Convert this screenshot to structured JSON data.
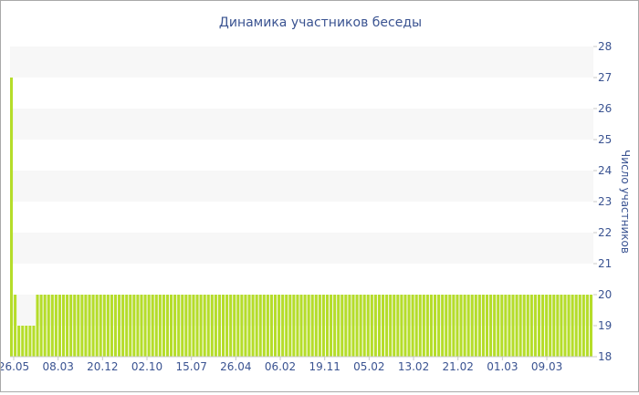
{
  "chart_data": {
    "type": "bar",
    "title": "Динамика участников беседы",
    "xlabel": "",
    "ylabel": "Число участников",
    "ylim": [
      18,
      28
    ],
    "y_ticks": [
      18,
      19,
      20,
      21,
      22,
      23,
      24,
      25,
      26,
      27,
      28
    ],
    "y_axis_side": "right",
    "grid": "horizontal alternating bands",
    "x_tick_labels": [
      "26.05",
      "08.03",
      "20.12",
      "02.10",
      "15.07",
      "26.04",
      "06.02",
      "19.11",
      "05.02",
      "13.02",
      "21.02",
      "01.03",
      "09.03"
    ],
    "series": [
      {
        "color": "#b5dd2a",
        "values": [
          27,
          20,
          19,
          19,
          19,
          19,
          19,
          20,
          20,
          20,
          20,
          20,
          20,
          20,
          20,
          20,
          20,
          20,
          20,
          20,
          20,
          20,
          20,
          20,
          20,
          20,
          20,
          20,
          20,
          20,
          20,
          20,
          20,
          20,
          20,
          20,
          20,
          20,
          20,
          20,
          20,
          20,
          20,
          20,
          20,
          20,
          20,
          20,
          20,
          20,
          20,
          20,
          20,
          20,
          20,
          20,
          20,
          20,
          20,
          20,
          20,
          20,
          20,
          20,
          20,
          20,
          20,
          20,
          20,
          20,
          20,
          20,
          20,
          20,
          20,
          20,
          20,
          20,
          20,
          20,
          20,
          20,
          20,
          20,
          20,
          20,
          20,
          20,
          20,
          20,
          20,
          20,
          20,
          20,
          20,
          20,
          20,
          20,
          20,
          20,
          20,
          20,
          20,
          20,
          20,
          20,
          20,
          20,
          20,
          20,
          20,
          20,
          20,
          20,
          20,
          20,
          20,
          20,
          20,
          20,
          20,
          20,
          20,
          20,
          20,
          20,
          20,
          20,
          20,
          20,
          20,
          20,
          20,
          20,
          20,
          20,
          20,
          20,
          20,
          20,
          20,
          20,
          20,
          20,
          20,
          20,
          20,
          20,
          20,
          20,
          20,
          20,
          20,
          20,
          20,
          20,
          20
        ]
      }
    ]
  },
  "colors": {
    "bar": "#b5dd2a",
    "band": "#f7f7f7",
    "text": "#3a5391"
  }
}
